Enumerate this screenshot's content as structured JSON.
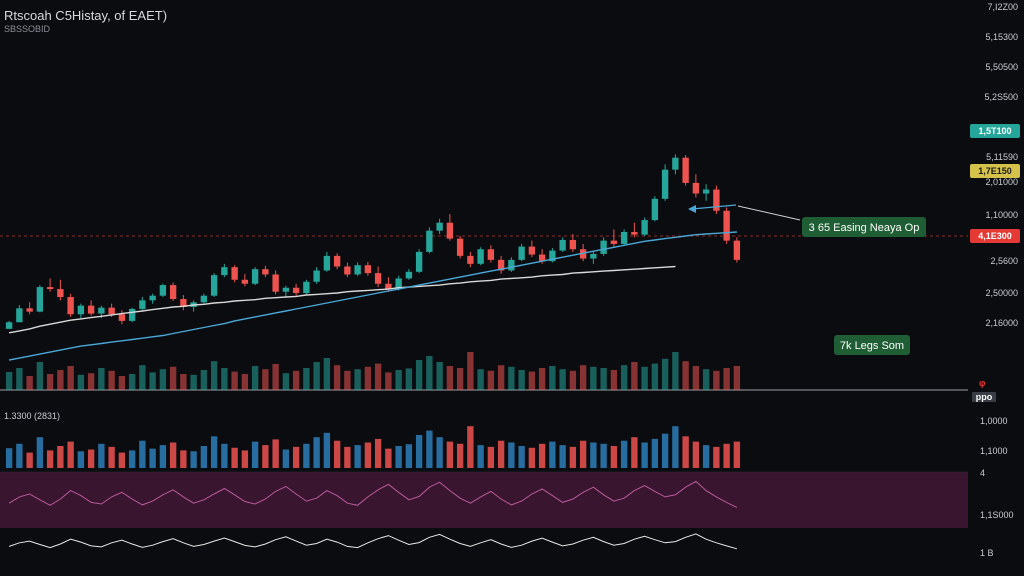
{
  "header": {
    "title": "Rtscoah C5Histay, of EAET)",
    "subtitle": "SBSSOBID",
    "volume_label": "1.3300 (2831)"
  },
  "colors": {
    "background": "#0b0c10",
    "up": "#26a69a",
    "down": "#ef5350",
    "ma_long": "#d9d9d9",
    "ma_short": "#4aa8d8",
    "volume_blue": "#2e7fb8",
    "osc_band": "#3a1530",
    "osc_line": "#b85a9a",
    "osc_line2": "#e8e8e8"
  },
  "price_axis": {
    "ticks": [
      "7,I2Z00",
      "5,15300",
      "5,50500",
      "5,2S500",
      "5,11590",
      "2,01000",
      "1,10000",
      "2,5600",
      "2,50000",
      "2,16000"
    ]
  },
  "badges": {
    "green": "1,5T100",
    "yellow": "1,7E150",
    "red": "4,1E300",
    "small": "ppo"
  },
  "annotations": {
    "ema_label": "3 65 Easing Neaya Op",
    "legs_label": "7k Legs Som"
  },
  "lower_axis": {
    "ticks": [
      "1,0000",
      "1,1000",
      "4",
      "1,1S000",
      "1 B"
    ]
  },
  "chart_data": {
    "type": "candlestick",
    "title": "Rtscoah C5Histay, of EAET)",
    "price_ticks": [
      "7,I2Z00",
      "5,15300",
      "5,50500",
      "5,2S500",
      "5,11590",
      "2,01000",
      "1,10000",
      "2,5600",
      "2,50000",
      "2,16000"
    ],
    "price_range": [
      2.0,
      7.2
    ],
    "candles": [
      [
        2.62,
        2.74,
        2.62,
        2.72
      ],
      [
        2.72,
        2.98,
        2.72,
        2.93
      ],
      [
        2.93,
        3.02,
        2.84,
        2.88
      ],
      [
        2.88,
        3.28,
        2.87,
        3.25
      ],
      [
        3.25,
        3.38,
        3.18,
        3.22
      ],
      [
        3.22,
        3.36,
        3.05,
        3.1
      ],
      [
        3.1,
        3.15,
        2.8,
        2.84
      ],
      [
        2.84,
        3.0,
        2.78,
        2.97
      ],
      [
        2.97,
        3.05,
        2.82,
        2.85
      ],
      [
        2.85,
        2.97,
        2.78,
        2.94
      ],
      [
        2.94,
        3.0,
        2.8,
        2.84
      ],
      [
        2.84,
        2.9,
        2.69,
        2.74
      ],
      [
        2.74,
        2.94,
        2.72,
        2.92
      ],
      [
        2.92,
        3.1,
        2.9,
        3.05
      ],
      [
        3.05,
        3.15,
        3.0,
        3.12
      ],
      [
        3.12,
        3.3,
        3.1,
        3.28
      ],
      [
        3.28,
        3.32,
        3.04,
        3.07
      ],
      [
        3.07,
        3.13,
        2.9,
        2.95
      ],
      [
        2.95,
        3.05,
        2.88,
        3.02
      ],
      [
        3.02,
        3.15,
        3.0,
        3.12
      ],
      [
        3.12,
        3.46,
        3.1,
        3.43
      ],
      [
        3.43,
        3.6,
        3.4,
        3.55
      ],
      [
        3.55,
        3.58,
        3.32,
        3.36
      ],
      [
        3.36,
        3.45,
        3.26,
        3.3
      ],
      [
        3.3,
        3.55,
        3.28,
        3.52
      ],
      [
        3.52,
        3.57,
        3.4,
        3.44
      ],
      [
        3.44,
        3.5,
        3.14,
        3.18
      ],
      [
        3.18,
        3.27,
        3.1,
        3.24
      ],
      [
        3.24,
        3.3,
        3.12,
        3.16
      ],
      [
        3.16,
        3.36,
        3.14,
        3.33
      ],
      [
        3.33,
        3.55,
        3.3,
        3.5
      ],
      [
        3.5,
        3.78,
        3.48,
        3.72
      ],
      [
        3.72,
        3.76,
        3.52,
        3.56
      ],
      [
        3.56,
        3.62,
        3.4,
        3.44
      ],
      [
        3.44,
        3.62,
        3.42,
        3.58
      ],
      [
        3.58,
        3.63,
        3.42,
        3.46
      ],
      [
        3.46,
        3.56,
        3.25,
        3.3
      ],
      [
        3.3,
        3.4,
        3.18,
        3.22
      ],
      [
        3.22,
        3.42,
        3.2,
        3.38
      ],
      [
        3.38,
        3.52,
        3.36,
        3.48
      ],
      [
        3.48,
        3.82,
        3.46,
        3.78
      ],
      [
        3.78,
        4.15,
        3.76,
        4.1
      ],
      [
        4.1,
        4.28,
        4.05,
        4.22
      ],
      [
        4.22,
        4.35,
        3.95,
        3.98
      ],
      [
        3.98,
        4.02,
        3.68,
        3.72
      ],
      [
        3.72,
        3.78,
        3.55,
        3.6
      ],
      [
        3.6,
        3.85,
        3.58,
        3.82
      ],
      [
        3.82,
        3.88,
        3.62,
        3.66
      ],
      [
        3.66,
        3.72,
        3.45,
        3.5
      ],
      [
        3.5,
        3.7,
        3.48,
        3.66
      ],
      [
        3.66,
        3.9,
        3.64,
        3.86
      ],
      [
        3.86,
        3.95,
        3.7,
        3.74
      ],
      [
        3.74,
        3.82,
        3.6,
        3.64
      ],
      [
        3.64,
        3.84,
        3.62,
        3.8
      ],
      [
        3.8,
        4.0,
        3.78,
        3.96
      ],
      [
        3.96,
        4.05,
        3.78,
        3.82
      ],
      [
        3.82,
        3.9,
        3.64,
        3.68
      ],
      [
        3.68,
        3.8,
        3.6,
        3.75
      ],
      [
        3.75,
        4.0,
        3.72,
        3.95
      ],
      [
        3.95,
        4.12,
        3.85,
        3.9
      ],
      [
        3.9,
        4.12,
        3.88,
        4.08
      ],
      [
        4.08,
        4.22,
        4.0,
        4.04
      ],
      [
        4.04,
        4.3,
        4.02,
        4.26
      ],
      [
        4.26,
        4.62,
        4.24,
        4.58
      ],
      [
        4.58,
        5.1,
        4.55,
        5.02
      ],
      [
        5.02,
        5.25,
        4.95,
        5.2
      ],
      [
        5.2,
        5.24,
        4.78,
        4.82
      ],
      [
        4.82,
        4.95,
        4.6,
        4.66
      ],
      [
        4.66,
        4.8,
        4.55,
        4.72
      ],
      [
        4.72,
        4.78,
        4.35,
        4.4
      ],
      [
        4.4,
        4.45,
        3.9,
        3.95
      ],
      [
        3.95,
        4.0,
        3.62,
        3.66
      ]
    ],
    "series": [
      {
        "name": "ma_long",
        "values": [
          2.56,
          2.59,
          2.62,
          2.66,
          2.69,
          2.72,
          2.75,
          2.77,
          2.79,
          2.81,
          2.83,
          2.85,
          2.87,
          2.89,
          2.91,
          2.93,
          2.95,
          2.96,
          2.98,
          2.99,
          3.01,
          3.02,
          3.04,
          3.05,
          3.06,
          3.08,
          3.09,
          3.1,
          3.11,
          3.13,
          3.14,
          3.15,
          3.16,
          3.18,
          3.19,
          3.2,
          3.21,
          3.22,
          3.24,
          3.25,
          3.26,
          3.27,
          3.28,
          3.3,
          3.31,
          3.33,
          3.34,
          3.35,
          3.37,
          3.38,
          3.39,
          3.4,
          3.42,
          3.43,
          3.44,
          3.46,
          3.47,
          3.48,
          3.49,
          3.5,
          3.51,
          3.52,
          3.53,
          3.54,
          3.55,
          3.56,
          3.57,
          3.58,
          3.59,
          3.6,
          3.61,
          3.62
        ]
      },
      {
        "name": "ma_short",
        "values": [
          2.15,
          2.18,
          2.21,
          2.24,
          2.27,
          2.3,
          2.33,
          2.36,
          2.38,
          2.4,
          2.42,
          2.44,
          2.46,
          2.48,
          2.5,
          2.52,
          2.55,
          2.58,
          2.61,
          2.64,
          2.67,
          2.7,
          2.74,
          2.77,
          2.8,
          2.83,
          2.86,
          2.89,
          2.92,
          2.95,
          2.98,
          3.01,
          3.04,
          3.07,
          3.1,
          3.13,
          3.16,
          3.19,
          3.22,
          3.25,
          3.28,
          3.31,
          3.34,
          3.37,
          3.4,
          3.43,
          3.46,
          3.49,
          3.52,
          3.55,
          3.58,
          3.61,
          3.64,
          3.67,
          3.7,
          3.73,
          3.76,
          3.79,
          3.82,
          3.85,
          3.88,
          3.91,
          3.94,
          3.96,
          3.98,
          4.0,
          4.02,
          4.04,
          4.05,
          4.06,
          4.07,
          4.08
        ]
      }
    ],
    "volume": [
      0.45,
      0.55,
      0.35,
      0.7,
      0.4,
      0.5,
      0.6,
      0.38,
      0.42,
      0.55,
      0.48,
      0.35,
      0.4,
      0.62,
      0.44,
      0.52,
      0.58,
      0.4,
      0.38,
      0.5,
      0.72,
      0.55,
      0.46,
      0.4,
      0.6,
      0.52,
      0.65,
      0.42,
      0.48,
      0.55,
      0.7,
      0.8,
      0.62,
      0.48,
      0.52,
      0.58,
      0.66,
      0.44,
      0.5,
      0.54,
      0.75,
      0.85,
      0.7,
      0.6,
      0.55,
      0.95,
      0.52,
      0.48,
      0.62,
      0.58,
      0.5,
      0.46,
      0.55,
      0.6,
      0.52,
      0.48,
      0.62,
      0.58,
      0.55,
      0.5,
      0.62,
      0.7,
      0.58,
      0.66,
      0.78,
      0.95,
      0.72,
      0.6,
      0.52,
      0.48,
      0.55,
      0.6
    ],
    "oscillator": [
      0.4,
      0.55,
      0.62,
      0.48,
      0.35,
      0.5,
      0.7,
      0.58,
      0.42,
      0.38,
      0.55,
      0.66,
      0.5,
      0.36,
      0.45,
      0.6,
      0.72,
      0.55,
      0.4,
      0.48,
      0.62,
      0.75,
      0.6,
      0.44,
      0.38,
      0.5,
      0.68,
      0.8,
      0.62,
      0.45,
      0.52,
      0.7,
      0.58,
      0.4,
      0.35,
      0.55,
      0.72,
      0.85,
      0.66,
      0.48,
      0.56,
      0.78,
      0.9,
      0.7,
      0.52,
      0.4,
      0.55,
      0.68,
      0.5,
      0.36,
      0.45,
      0.62,
      0.74,
      0.58,
      0.42,
      0.5,
      0.66,
      0.78,
      0.6,
      0.45,
      0.52,
      0.7,
      0.82,
      0.68,
      0.55,
      0.6,
      0.78,
      0.92,
      0.7,
      0.55,
      0.42,
      0.3
    ]
  }
}
